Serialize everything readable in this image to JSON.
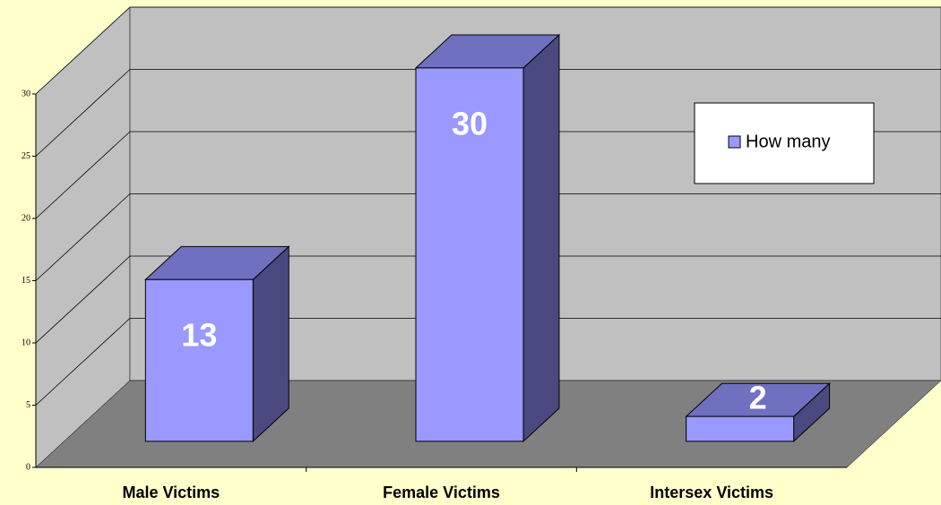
{
  "chart_data": {
    "type": "bar3d",
    "categories": [
      "Male Victims",
      "Female Victims",
      "Intersex Victims"
    ],
    "series": [
      {
        "name": "How many",
        "color": "#9999ff",
        "values": [
          13,
          30,
          2
        ]
      }
    ],
    "ylim": [
      0,
      30
    ],
    "yticks": [
      0,
      5,
      10,
      15,
      20,
      25,
      30
    ],
    "grid": true,
    "legend": "upper right"
  }
}
